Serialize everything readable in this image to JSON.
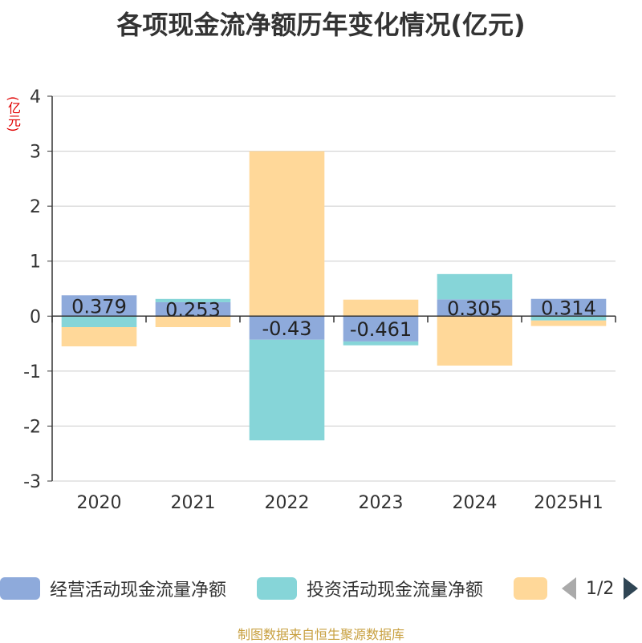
{
  "title": "各项现金流净额历年变化情况(亿元)",
  "unit": "(亿元)",
  "source": "制图数据来自恒生聚源数据库",
  "legend": {
    "items": [
      {
        "label": "经营活动现金流量净额",
        "color": "#8eaadb"
      },
      {
        "label": "投资活动现金流量净额",
        "color": "#86d5d8"
      },
      {
        "label": "",
        "color": "#ffd899"
      }
    ],
    "page": "1/2"
  },
  "chart_data": {
    "type": "bar",
    "stacked": true,
    "categories": [
      "2020",
      "2021",
      "2022",
      "2023",
      "2024",
      "2025H1"
    ],
    "series": [
      {
        "name": "经营活动现金流量净额",
        "color": "#8eaadb",
        "values": [
          0.379,
          0.253,
          -0.43,
          -0.461,
          0.305,
          0.314
        ],
        "labels": [
          "0.379",
          "0.253",
          "-0.43",
          "-0.461",
          "0.305",
          "0.314"
        ]
      },
      {
        "name": "投资活动现金流量净额",
        "color": "#86d5d8",
        "values": [
          -0.2,
          0.06,
          -1.83,
          -0.07,
          0.46,
          -0.08
        ]
      },
      {
        "name": "",
        "color": "#ffd899",
        "values": [
          -0.35,
          -0.2,
          3.0,
          0.3,
          -0.9,
          -0.1
        ]
      }
    ],
    "ylim": [
      -3,
      4
    ],
    "yticks": [
      4,
      3,
      2,
      1,
      0,
      -1,
      -2,
      -3
    ],
    "grid": true
  }
}
